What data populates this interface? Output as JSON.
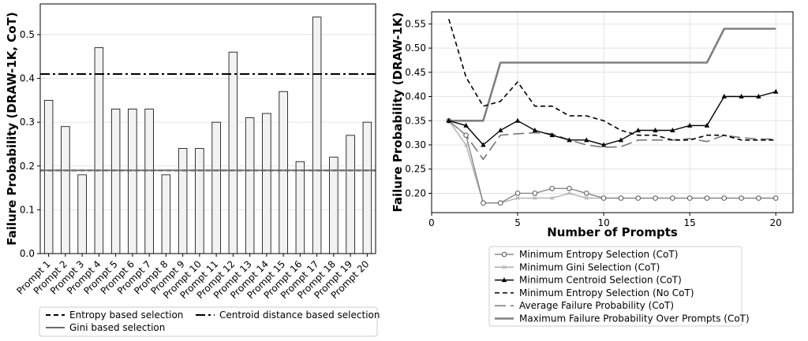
{
  "chart_data": [
    {
      "type": "bar",
      "ylabel": "Failure Probability (DRAW-1K, CoT)",
      "xlabel": "",
      "ylim": [
        0,
        0.57
      ],
      "yticks": [
        0.0,
        0.1,
        0.2,
        0.3,
        0.4,
        0.5
      ],
      "grid": true,
      "legend_position": "bottom",
      "categories": [
        "Prompt 1",
        "Prompt 2",
        "Prompt 3",
        "Prompt 4",
        "Prompt 5",
        "Prompt 6",
        "Prompt 7",
        "Prompt 8",
        "Prompt 9",
        "Prompt 10",
        "Prompt 11",
        "Prompt 12",
        "Prompt 13",
        "Prompt 14",
        "Prompt 15",
        "Prompt 16",
        "Prompt 17",
        "Prompt 18",
        "Prompt 19",
        "Prompt 20"
      ],
      "values": [
        0.35,
        0.29,
        0.18,
        0.47,
        0.33,
        0.33,
        0.33,
        0.18,
        0.24,
        0.24,
        0.3,
        0.46,
        0.31,
        0.32,
        0.37,
        0.21,
        0.54,
        0.22,
        0.27,
        0.3
      ],
      "reference_lines": [
        {
          "name": "Entropy based selection",
          "value": 0.19,
          "style": "dashed",
          "color": "#000000"
        },
        {
          "name": "Gini based selection",
          "value": 0.19,
          "style": "solid",
          "color": "#6b6b6b"
        },
        {
          "name": "Centroid distance based selection",
          "value": 0.41,
          "style": "dashdot",
          "color": "#000000"
        }
      ],
      "colors": {
        "bar_fill": "#f2f2f2",
        "bar_edge": "#000000"
      }
    },
    {
      "type": "line",
      "xlabel": "Number of Prompts",
      "ylabel": "Failure Probability (DRAW-1K)",
      "xlim": [
        0,
        21
      ],
      "ylim": [
        0.16,
        0.575
      ],
      "xticks": [
        0,
        5,
        10,
        15,
        20
      ],
      "yticks": [
        0.2,
        0.25,
        0.3,
        0.35,
        0.4,
        0.45,
        0.5,
        0.55
      ],
      "grid": true,
      "legend_position": "bottom",
      "x": [
        1,
        2,
        3,
        4,
        5,
        6,
        7,
        8,
        9,
        10,
        11,
        12,
        13,
        14,
        15,
        16,
        17,
        18,
        19,
        20
      ],
      "series": [
        {
          "name": "Minimum Entropy Selection (CoT)",
          "color": "#888888",
          "style": "solid",
          "marker": "circle-open",
          "values": [
            0.35,
            0.32,
            0.18,
            0.18,
            0.2,
            0.2,
            0.21,
            0.21,
            0.2,
            0.19,
            0.19,
            0.19,
            0.19,
            0.19,
            0.19,
            0.19,
            0.19,
            0.19,
            0.19,
            0.19
          ]
        },
        {
          "name": "Minimum Gini Selection (CoT)",
          "color": "#b0b0b0",
          "style": "solid",
          "marker": "x",
          "values": [
            0.35,
            0.3,
            0.18,
            0.18,
            0.19,
            0.19,
            0.19,
            0.2,
            0.19,
            0.19,
            0.19,
            0.19,
            0.19,
            0.19,
            0.19,
            0.19,
            0.19,
            0.19,
            0.19,
            0.19
          ]
        },
        {
          "name": "Minimum Centroid Selection (CoT)",
          "color": "#000000",
          "style": "solid",
          "marker": "triangle",
          "values": [
            0.35,
            0.34,
            0.3,
            0.33,
            0.35,
            0.33,
            0.32,
            0.31,
            0.31,
            0.3,
            0.31,
            0.33,
            0.33,
            0.33,
            0.34,
            0.34,
            0.4,
            0.4,
            0.4,
            0.41
          ]
        },
        {
          "name": "Minimum Entropy Selection (No CoT)",
          "color": "#000000",
          "style": "dashed",
          "marker": "none",
          "values": [
            0.56,
            0.44,
            0.38,
            0.39,
            0.43,
            0.38,
            0.38,
            0.36,
            0.36,
            0.35,
            0.33,
            0.32,
            0.32,
            0.31,
            0.31,
            0.32,
            0.32,
            0.31,
            0.31,
            0.31
          ]
        },
        {
          "name": "Average Failure Probability (CoT)",
          "color": "#777777",
          "style": "longdash",
          "marker": "none",
          "values": [
            0.35,
            0.32,
            0.27,
            0.32,
            0.323,
            0.325,
            0.323,
            0.31,
            0.3,
            0.295,
            0.296,
            0.31,
            0.31,
            0.31,
            0.313,
            0.307,
            0.32,
            0.315,
            0.312,
            0.312
          ]
        },
        {
          "name": "Maximum Failure Probability Over Prompts (CoT)",
          "color": "#808080",
          "style": "solid-thick",
          "marker": "none",
          "values": [
            0.35,
            0.35,
            0.35,
            0.47,
            0.47,
            0.47,
            0.47,
            0.47,
            0.47,
            0.47,
            0.47,
            0.47,
            0.47,
            0.47,
            0.47,
            0.47,
            0.54,
            0.54,
            0.54,
            0.54
          ]
        }
      ]
    }
  ]
}
